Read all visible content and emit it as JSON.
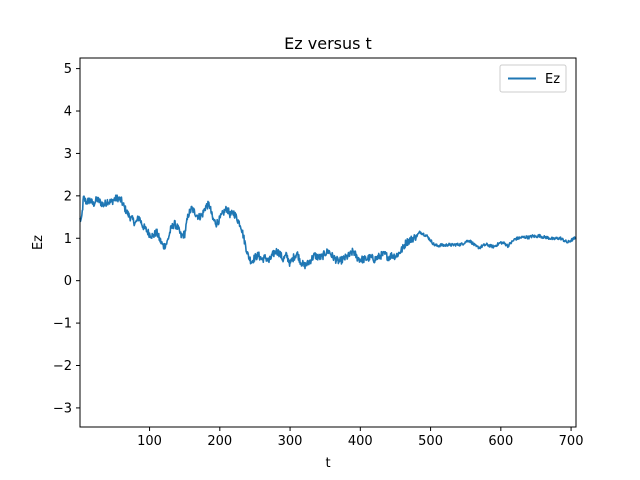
{
  "chart_data": {
    "type": "line",
    "title": "Ez versus t",
    "xlabel": "t",
    "ylabel": "Ez",
    "xlim": [
      1,
      707
    ],
    "ylim": [
      -3.45,
      5.25
    ],
    "xticks": [
      100,
      200,
      300,
      400,
      500,
      600,
      700
    ],
    "yticks": [
      -3,
      -2,
      -1,
      0,
      1,
      2,
      3,
      4,
      5
    ],
    "grid": false,
    "legend": {
      "placement": "top-right"
    },
    "series": [
      {
        "name": "Ez",
        "color": "#1f77b4",
        "x": [
          1,
          3,
          6,
          10,
          15,
          20,
          25,
          30,
          35,
          40,
          45,
          50,
          55,
          60,
          65,
          70,
          75,
          80,
          85,
          90,
          95,
          100,
          105,
          110,
          115,
          120,
          125,
          130,
          135,
          140,
          145,
          150,
          155,
          160,
          165,
          170,
          175,
          180,
          185,
          190,
          195,
          200,
          205,
          210,
          215,
          220,
          225,
          230,
          235,
          240,
          245,
          250,
          255,
          260,
          265,
          270,
          275,
          280,
          285,
          290,
          295,
          300,
          305,
          310,
          315,
          320,
          325,
          330,
          335,
          340,
          345,
          350,
          355,
          360,
          365,
          370,
          375,
          380,
          385,
          390,
          395,
          400,
          405,
          410,
          415,
          420,
          425,
          430,
          435,
          440,
          445,
          450,
          455,
          460,
          465,
          470,
          475,
          480,
          485,
          490,
          495,
          500,
          505,
          510,
          515,
          520,
          525,
          530,
          535,
          540,
          545,
          550,
          555,
          560,
          565,
          570,
          575,
          580,
          585,
          590,
          595,
          600,
          605,
          610,
          615,
          620,
          625,
          630,
          635,
          640,
          645,
          650,
          655,
          660,
          665,
          670,
          675,
          680,
          685,
          690,
          695,
          700,
          705,
          707
        ],
        "y": [
          1.45,
          1.4,
          1.95,
          1.85,
          1.9,
          1.8,
          1.92,
          1.85,
          1.78,
          1.88,
          1.85,
          1.92,
          1.95,
          1.88,
          1.7,
          1.55,
          1.45,
          1.35,
          1.5,
          1.3,
          1.2,
          1.1,
          1.05,
          1.15,
          0.95,
          0.8,
          0.9,
          1.2,
          1.35,
          1.25,
          1.05,
          1.1,
          1.55,
          1.7,
          1.6,
          1.5,
          1.55,
          1.75,
          1.8,
          1.45,
          1.35,
          1.45,
          1.6,
          1.7,
          1.55,
          1.6,
          1.45,
          1.3,
          0.95,
          0.6,
          0.45,
          0.55,
          0.6,
          0.5,
          0.55,
          0.45,
          0.6,
          0.7,
          0.65,
          0.5,
          0.6,
          0.4,
          0.55,
          0.65,
          0.45,
          0.35,
          0.4,
          0.5,
          0.6,
          0.55,
          0.55,
          0.65,
          0.7,
          0.58,
          0.5,
          0.45,
          0.5,
          0.55,
          0.6,
          0.7,
          0.55,
          0.5,
          0.5,
          0.52,
          0.55,
          0.5,
          0.55,
          0.6,
          0.62,
          0.55,
          0.6,
          0.58,
          0.65,
          0.75,
          0.9,
          0.95,
          1.0,
          1.05,
          1.15,
          1.1,
          1.05,
          0.95,
          0.85,
          0.82,
          0.84,
          0.83,
          0.85,
          0.84,
          0.85,
          0.85,
          0.86,
          0.92,
          0.95,
          0.88,
          0.8,
          0.78,
          0.83,
          0.85,
          0.82,
          0.8,
          0.85,
          0.9,
          0.88,
          0.82,
          0.9,
          0.98,
          1.0,
          1.02,
          1.03,
          1.02,
          1.05,
          1.04,
          1.06,
          1.03,
          1.02,
          1.0,
          0.98,
          1.0,
          1.0,
          0.95,
          0.9,
          0.95,
          1.0,
          0.98
        ]
      }
    ]
  }
}
